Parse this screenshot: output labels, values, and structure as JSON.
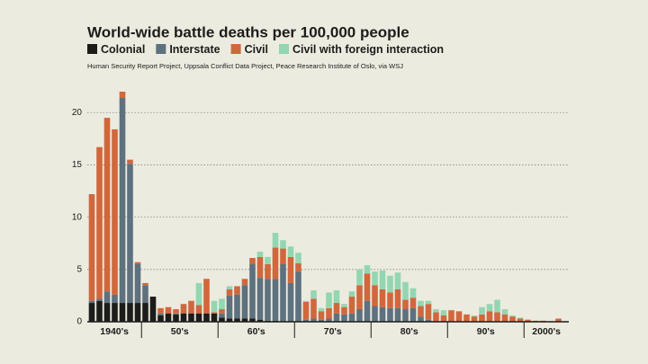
{
  "chart_data": {
    "type": "stacked_bar",
    "title": "World-wide battle deaths per 100,000 people",
    "subtitle": "Human Security Report Project, Uppsala Conflict Data Project, Peace Research Institute of Oslo, via WSJ",
    "categories": [
      null,
      null,
      null,
      null,
      null,
      null,
      null,
      null,
      null,
      null,
      null,
      null,
      null,
      null,
      null,
      null,
      null,
      null,
      null,
      null,
      null,
      null,
      null,
      null,
      null,
      null,
      null,
      null,
      null,
      null,
      null,
      null,
      null,
      null,
      null,
      null,
      null,
      null,
      null,
      null,
      null,
      null,
      null,
      null,
      null,
      null,
      null,
      null,
      null,
      null,
      null,
      null,
      null,
      null,
      null,
      null,
      null,
      null,
      null,
      null,
      null,
      null
    ],
    "decade_labels": [
      "1940's",
      "50's",
      "60's",
      "70's",
      "80's",
      "90's",
      "2000's"
    ],
    "ylim": [
      0,
      22
    ],
    "yticks": [
      0,
      5,
      10,
      15,
      20
    ],
    "grid": true,
    "series": [
      {
        "name": "Colonial",
        "color": "#1c1c1a",
        "values": [
          1.8,
          2.0,
          1.8,
          1.8,
          1.8,
          1.8,
          1.8,
          1.8,
          2.4,
          0.6,
          0.8,
          0.7,
          0.8,
          0.8,
          0.8,
          0.8,
          0.8,
          0.4,
          0.3,
          0.3,
          0.3,
          0.3,
          0.2,
          0.1,
          0.1,
          0,
          0,
          0,
          0,
          0,
          0,
          0,
          0,
          0,
          0,
          0,
          0,
          0,
          0,
          0,
          0,
          0,
          0,
          0,
          0,
          0,
          0,
          0,
          0,
          0,
          0,
          0,
          0,
          0,
          0,
          0,
          0,
          0,
          0,
          0,
          0,
          0
        ]
      },
      {
        "name": "Interstate",
        "color": "#5d717e",
        "values": [
          0.2,
          0.2,
          1.1,
          0.8,
          19.6,
          13.3,
          3.7,
          1.7,
          0,
          0.2,
          0,
          0.1,
          0,
          0,
          0,
          0,
          0,
          0.4,
          2.2,
          2.3,
          3.2,
          5.2,
          4.0,
          4.0,
          4.0,
          5.5,
          3.7,
          4.8,
          0.2,
          0.3,
          0.2,
          0.3,
          0.8,
          0.7,
          0.8,
          1.2,
          2.0,
          1.5,
          1.4,
          1.3,
          1.3,
          1.2,
          1.3,
          0.5,
          0.2,
          0,
          0,
          0,
          0,
          0,
          0,
          0,
          0,
          0,
          0,
          0,
          0,
          0,
          0,
          0,
          0,
          0
        ]
      },
      {
        "name": "Civil",
        "color": "#d0673d",
        "values": [
          10.2,
          14.5,
          16.6,
          15.8,
          0.6,
          0.4,
          0.2,
          0.2,
          0,
          0.5,
          0.6,
          0.4,
          0.9,
          1.2,
          0.8,
          3.3,
          0.1,
          0.4,
          0.6,
          0.8,
          0.6,
          0.6,
          2.0,
          1.4,
          3.0,
          1.5,
          2.5,
          0.8,
          1.7,
          1.9,
          0.8,
          1.0,
          1.0,
          0.7,
          1.6,
          2.3,
          2.6,
          2.0,
          1.7,
          1.5,
          1.8,
          0.9,
          1.0,
          1.0,
          1.5,
          0.9,
          0.6,
          1.1,
          1.0,
          0.7,
          0.5,
          0.7,
          1.0,
          0.9,
          0.7,
          0.5,
          0.3,
          0.2,
          0.1,
          0.1,
          0.05,
          0.3
        ]
      },
      {
        "name": "Civil with foreign interaction",
        "color": "#93d6b1",
        "values": [
          0,
          0,
          0,
          0,
          0,
          0,
          0,
          0,
          0,
          0,
          0,
          0,
          0,
          0,
          2.1,
          0,
          1.1,
          1.0,
          0.3,
          0,
          0,
          0,
          0.5,
          0.7,
          1.4,
          0.8,
          1.0,
          1.0,
          0.1,
          0.8,
          0.3,
          1.5,
          1.2,
          0.3,
          0.5,
          1.5,
          0.8,
          1.3,
          1.8,
          1.6,
          1.6,
          1.7,
          0.9,
          0.5,
          0.3,
          0.3,
          0.5,
          0,
          0,
          0,
          0.1,
          0.7,
          0.7,
          1.2,
          0.5,
          0.1,
          0.1,
          0,
          0,
          0,
          0,
          0
        ]
      }
    ]
  }
}
